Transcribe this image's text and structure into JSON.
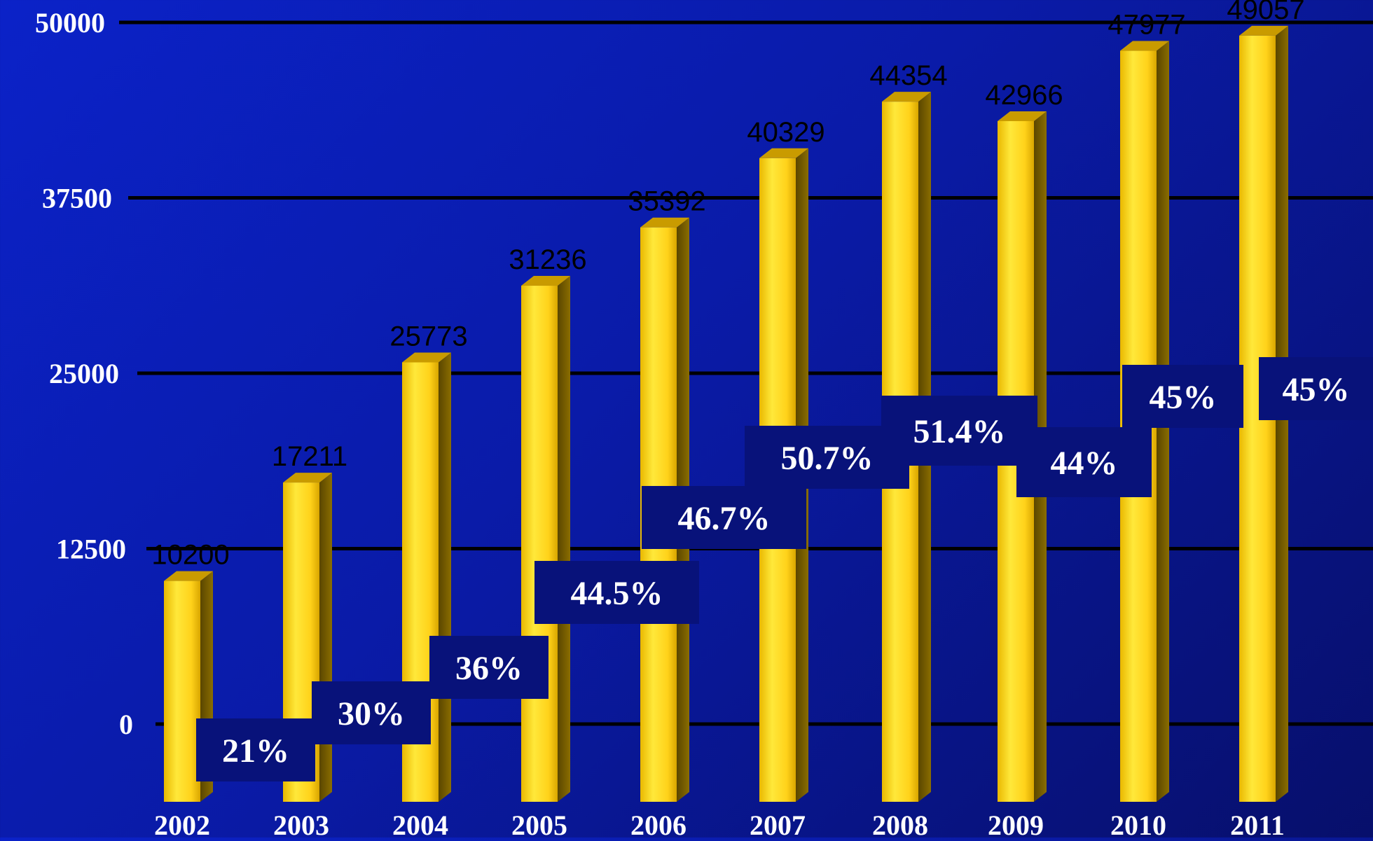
{
  "chart_data": {
    "type": "bar",
    "categories": [
      "2002",
      "2003",
      "2004",
      "2005",
      "2006",
      "2007",
      "2008",
      "2009",
      "2010",
      "2011"
    ],
    "values": [
      10200,
      17211,
      25773,
      31236,
      35392,
      40329,
      44354,
      42966,
      47977,
      49057
    ],
    "percent_labels": [
      "21%",
      "30%",
      "36%",
      "44.5%",
      "46.7%",
      "50.7%",
      "51.4%",
      "44%",
      "45%",
      "45%"
    ],
    "yticks": [
      "0",
      "12500",
      "25000",
      "37500",
      "50000"
    ],
    "ylim": [
      0,
      50000
    ],
    "grid": true,
    "colors": {
      "background": "#0a1ba8",
      "bar": "#f5d21a",
      "bar_dark": "#7a6200",
      "label_box": "#08127a"
    }
  }
}
